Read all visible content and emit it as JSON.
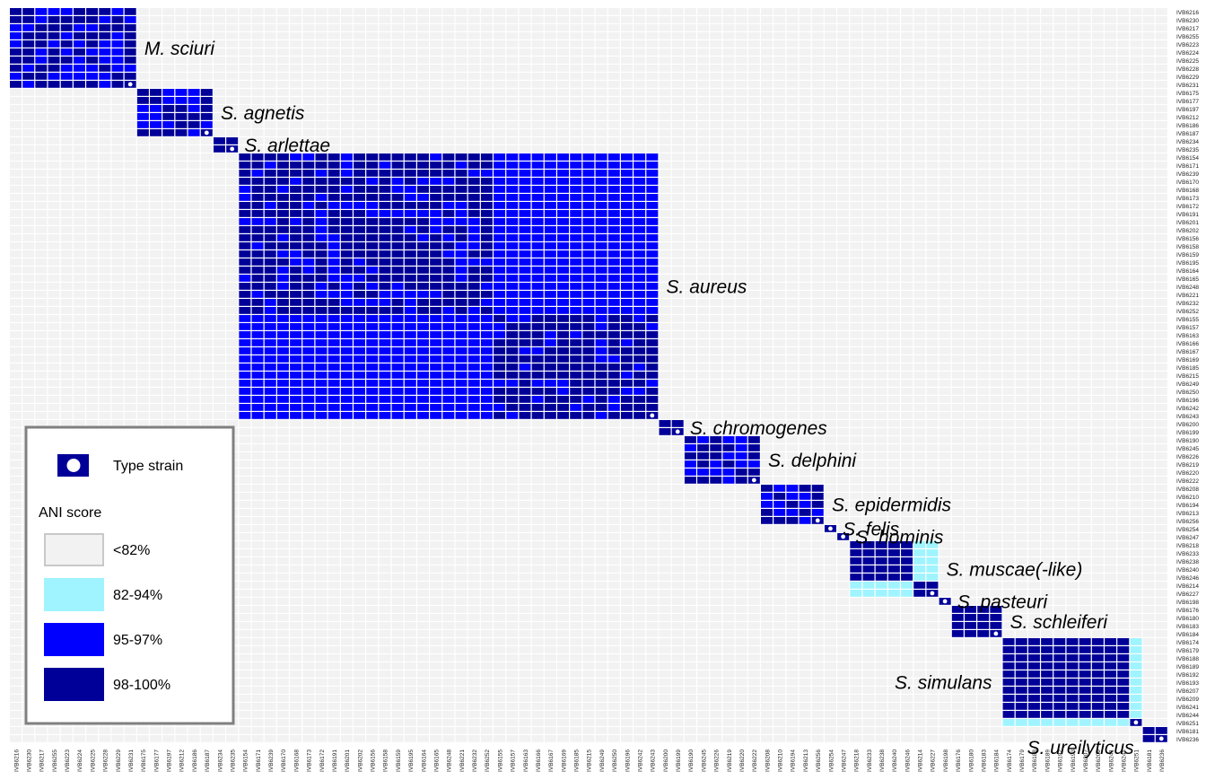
{
  "chart_data": {
    "type": "heatmap",
    "title": "",
    "xlabel": "",
    "ylabel": "",
    "colors": {
      "background_cell": "#f2f2f2",
      "low_82_94": "#9ff4ff",
      "mid_95_97": "#0000ff",
      "high_98_100": "#000099",
      "type_strain_marker": "#ffffff"
    },
    "order": [
      "IVB6216",
      "IVB6230",
      "IVB6217",
      "IVB6255",
      "IVB6223",
      "IVB6224",
      "IVB6225",
      "IVB6228",
      "IVB6229",
      "IVB6231",
      "IVB6175",
      "IVB6177",
      "IVB6197",
      "IVB6212",
      "IVB6186",
      "IVB6187",
      "IVB6234",
      "IVB6235",
      "IVB6154",
      "IVB6171",
      "IVB6239",
      "IVB6170",
      "IVB6168",
      "IVB6173",
      "IVB6172",
      "IVB6191",
      "IVB6201",
      "IVB6202",
      "IVB6156",
      "IVB6158",
      "IVB6159",
      "IVB6195",
      "IVB6164",
      "IVB6165",
      "IVB6248",
      "IVB6221",
      "IVB6232",
      "IVB6252",
      "IVB6155",
      "IVB6157",
      "IVB6163",
      "IVB6166",
      "IVB6167",
      "IVB6169",
      "IVB6185",
      "IVB6215",
      "IVB6249",
      "IVB6250",
      "IVB6196",
      "IVB6242",
      "IVB6243",
      "IVB6200",
      "IVB6199",
      "IVB6190",
      "IVB6245",
      "IVB6226",
      "IVB6219",
      "IVB6220",
      "IVB6222",
      "IVB6208",
      "IVB6210",
      "IVB6194",
      "IVB6213",
      "IVB6256",
      "IVB6254",
      "IVB6247",
      "IVB6218",
      "IVB6233",
      "IVB6238",
      "IVB6240",
      "IVB6246",
      "IVB6214",
      "IVB6227",
      "IVB6198",
      "IVB6176",
      "IVB6180",
      "IVB6183",
      "IVB6184",
      "IVB6174",
      "IVB6179",
      "IVB6188",
      "IVB6189",
      "IVB6192",
      "IVB6193",
      "IVB6207",
      "IVB6209",
      "IVB6241",
      "IVB6244",
      "IVB6251",
      "IVB6181",
      "IVB6236"
    ],
    "species_blocks": [
      {
        "name": "M. sciuri",
        "start": 0,
        "size": 10
      },
      {
        "name": "S. agnetis",
        "start": 10,
        "size": 6
      },
      {
        "name": "S. arlettae",
        "start": 16,
        "size": 2
      },
      {
        "name": "S. aureus",
        "start": 18,
        "size": 33
      },
      {
        "name": "S. chromogenes",
        "start": 51,
        "size": 2
      },
      {
        "name": "S. delphini",
        "start": 53,
        "size": 6
      },
      {
        "name": "S. epidermidis",
        "start": 59,
        "size": 5
      },
      {
        "name": "S. felis",
        "start": 64,
        "size": 1
      },
      {
        "name": "S. hominis",
        "start": 65,
        "size": 1
      },
      {
        "name": "S. muscae(-like)",
        "start": 66,
        "size": 7
      },
      {
        "name": "S. pasteuri",
        "start": 73,
        "size": 1
      },
      {
        "name": "S. schleiferi",
        "start": 74,
        "size": 4
      },
      {
        "name": "S. simulans",
        "start": 78,
        "size": 11
      },
      {
        "name": "S. ureilyticus",
        "start": 89,
        "size": 2
      }
    ],
    "type_strains": [
      "IVB6231",
      "IVB6187",
      "IVB6235",
      "IVB6243",
      "IVB6199",
      "IVB6222",
      "IVB6256",
      "IVB6254",
      "IVB6247",
      "IVB6227",
      "IVB6198",
      "IVB6184",
      "IVB6251",
      "IVB6236"
    ],
    "legend": {
      "type_strain_label": "Type strain",
      "ani_title": "ANI score",
      "bins": [
        {
          "label": "<82%",
          "color": "#f2f2f2"
        },
        {
          "label": "82-94%",
          "color": "#9ff4ff"
        },
        {
          "label": "95-97%",
          "color": "#0000ff"
        },
        {
          "label": "98-100%",
          "color": "#000099"
        }
      ]
    }
  }
}
